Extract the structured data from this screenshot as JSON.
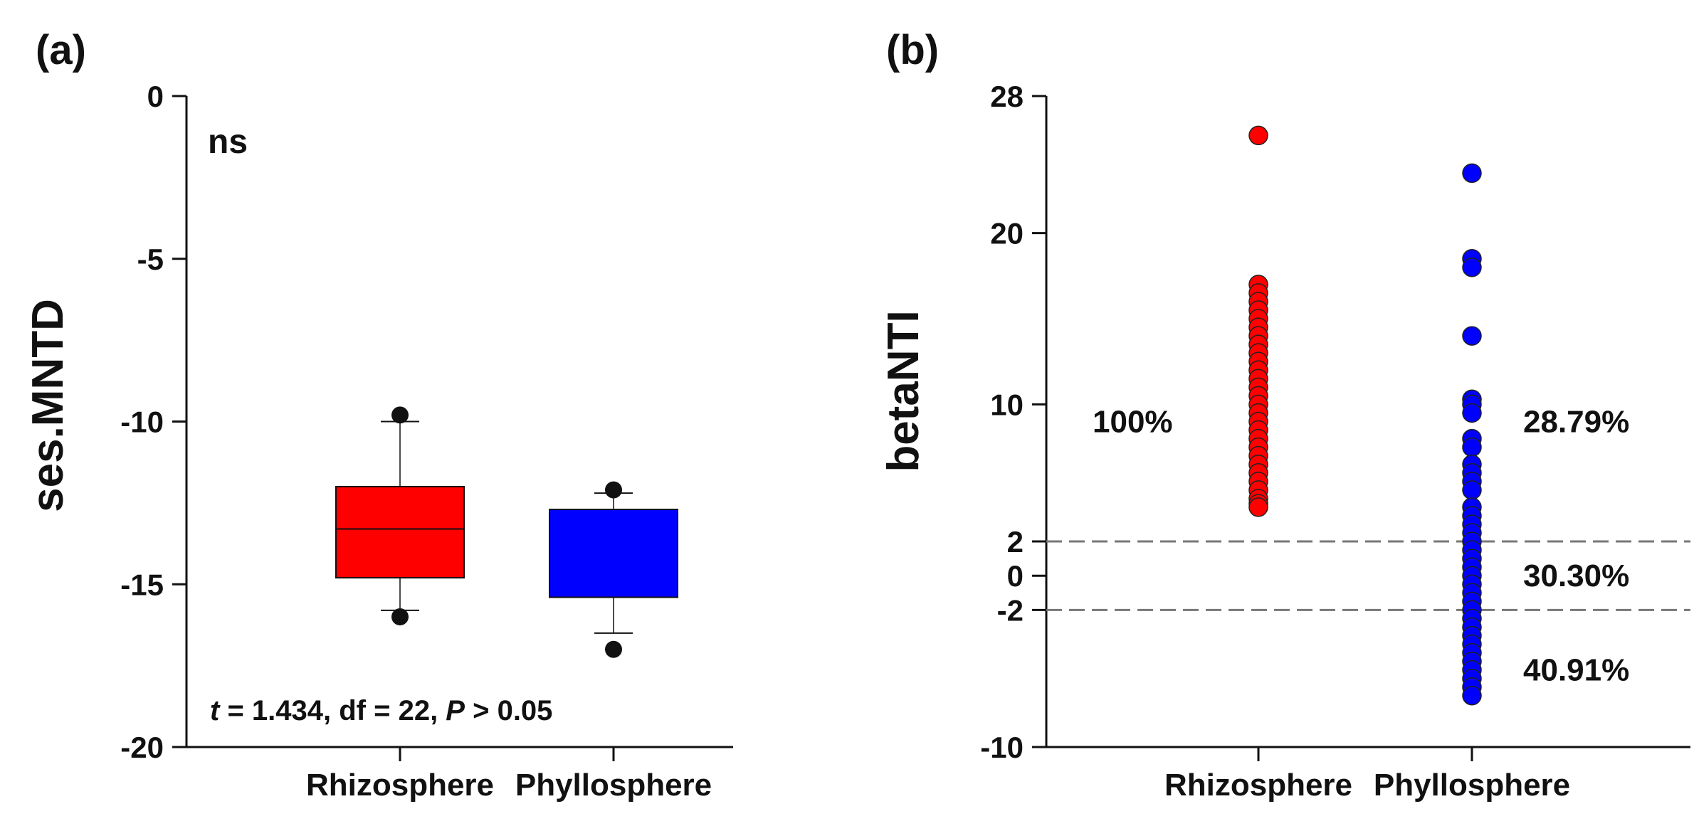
{
  "chart_data": [
    {
      "panel": "(a)",
      "type": "box",
      "ylabel": "ses.MNTD",
      "xlabel": "",
      "categories": [
        "Rhizosphere",
        "Phyllosphere"
      ],
      "ylim": [
        -20,
        0
      ],
      "yticks": [
        "0",
        "-5",
        "-10",
        "-15",
        "-20"
      ],
      "ytick_values": [
        0,
        -5,
        -10,
        -15,
        -20
      ],
      "boxes": [
        {
          "name": "Rhizosphere",
          "color": "#ff0000",
          "q1": -14.8,
          "median": -13.3,
          "q3": -12.0,
          "whisker_low": -15.8,
          "whisker_high": -10.0,
          "outliers": [
            -9.8,
            -16.0
          ]
        },
        {
          "name": "Phyllosphere",
          "color": "#0000ff",
          "q1": -15.4,
          "median": -15.4,
          "q3": -12.7,
          "whisker_low": -16.5,
          "whisker_high": -12.2,
          "outliers": [
            -12.1,
            -17.0
          ]
        }
      ],
      "annotation_ns": "ns",
      "stats": {
        "t_label": "t",
        "t_rest": " = 1.434, df = 22, ",
        "p_label": "P",
        "p_rest": " > 0.05"
      }
    },
    {
      "panel": "(b)",
      "type": "scatter",
      "ylabel": "betaNTI",
      "xlabel": "",
      "categories": [
        "Rhizosphere",
        "Phyllosphere"
      ],
      "ylim": [
        -10,
        28
      ],
      "yticks": [
        "28",
        "20",
        "10",
        "2",
        "0",
        "-2",
        "-10"
      ],
      "ytick_values": [
        28,
        20,
        10,
        2,
        0,
        -2,
        -10
      ],
      "threshold_lines": [
        2,
        -2
      ],
      "series": [
        {
          "name": "Rhizosphere",
          "color": "#ff0000",
          "values": [
            25.7,
            17.0,
            16.5,
            16.0,
            15.5,
            15.0,
            14.5,
            14.0,
            13.5,
            13.0,
            12.5,
            12.0,
            11.5,
            11.0,
            10.5,
            10.0,
            9.5,
            9.0,
            8.5,
            8.0,
            7.5,
            7.0,
            6.5,
            6.0,
            5.5,
            5.0,
            4.5,
            4.2,
            4.0
          ]
        },
        {
          "name": "Phyllosphere",
          "color": "#0000ff",
          "values": [
            23.5,
            18.5,
            18.0,
            14.0,
            10.3,
            10.0,
            9.5,
            8.0,
            7.5,
            6.5,
            6.0,
            5.5,
            5.0,
            4.0,
            3.5,
            3.0,
            2.5,
            2.0,
            1.5,
            1.0,
            0.5,
            0.0,
            -0.5,
            -1.0,
            -1.5,
            -2.0,
            -2.5,
            -3.0,
            -3.5,
            -4.0,
            -4.5,
            -5.0,
            -5.5,
            -6.0,
            -6.5,
            -7.0
          ]
        }
      ],
      "percent_labels": [
        {
          "text": "100%",
          "y": 9
        },
        {
          "text": "28.79%",
          "y": 9
        },
        {
          "text": "30.30%",
          "y": 0
        },
        {
          "text": "40.91%",
          "y": -5.5
        }
      ]
    }
  ]
}
